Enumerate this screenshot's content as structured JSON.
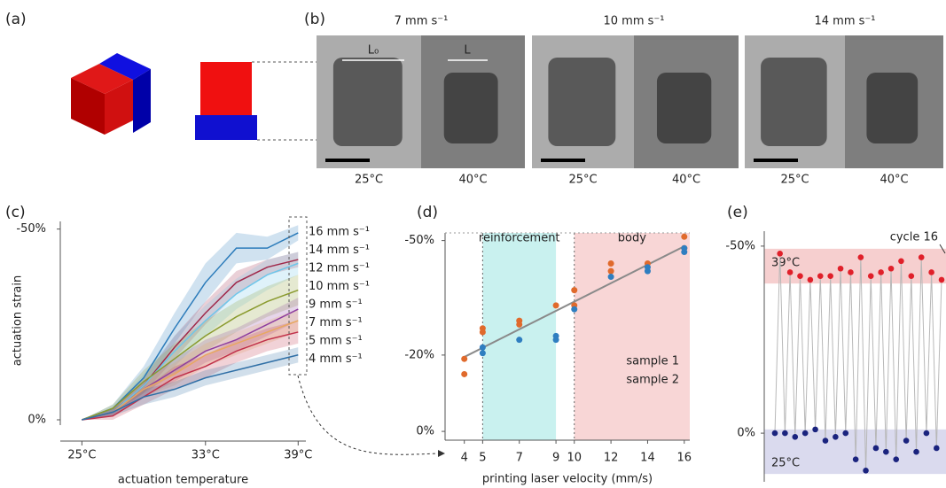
{
  "figure": {
    "panel_labels": [
      "(a)",
      "(b)",
      "(c)",
      "(d)",
      "(e)"
    ],
    "photos": {
      "speeds": [
        "7 mm s⁻¹",
        "10 mm s⁻¹",
        "14 mm s⁻¹"
      ],
      "temperatures": [
        "25°C",
        "40°C"
      ],
      "length_labels": [
        "L₀",
        "L"
      ]
    }
  },
  "chart_data": [
    {
      "type": "line",
      "xlabel": "actuation temperature",
      "ylabel": "actuation strain",
      "x": [
        25,
        27,
        29,
        31,
        33,
        35,
        37,
        39
      ],
      "xlim": [
        23.6,
        39.5
      ],
      "xticks": [
        {
          "value": 25,
          "label": "25°C"
        },
        {
          "value": 33,
          "label": "33°C"
        },
        {
          "value": 39,
          "label": "39°C"
        }
      ],
      "ylim": [
        0,
        -52
      ],
      "yticks": [
        {
          "value": -50,
          "label": "-50%"
        },
        {
          "value": 0,
          "label": "0%"
        }
      ],
      "series": [
        {
          "name": "16 mm s⁻¹",
          "color": "#2b7bba",
          "values": [
            0,
            -3,
            -11,
            -24,
            -36,
            -45,
            -45,
            -49
          ],
          "errors": [
            0,
            1,
            3,
            4,
            5,
            4,
            3,
            2
          ]
        },
        {
          "name": "14 mm s⁻¹",
          "color": "#a0284a",
          "values": [
            0,
            -2,
            -9,
            -19,
            -28,
            -36,
            -40,
            -42
          ],
          "errors": [
            0,
            1,
            2,
            3,
            3,
            3,
            2,
            2
          ]
        },
        {
          "name": "12 mm s⁻¹",
          "color": "#6ec6ea",
          "values": [
            0,
            -2,
            -9,
            -18,
            -26,
            -33,
            -38,
            -41
          ],
          "errors": [
            0,
            1,
            3,
            4,
            4,
            4,
            4,
            3
          ]
        },
        {
          "name": "10 mm s⁻¹",
          "color": "#8a9a2e",
          "values": [
            0,
            -3,
            -10,
            -16,
            -22,
            -27,
            -31,
            -34
          ],
          "errors": [
            0,
            1,
            3,
            4,
            4,
            4,
            4,
            4
          ]
        },
        {
          "name": "9 mm s⁻¹",
          "color": "#8e3ea0",
          "values": [
            0,
            -2,
            -8,
            -13,
            -18,
            -21,
            -25,
            -29
          ],
          "errors": [
            0,
            1,
            2,
            3,
            3,
            3,
            3,
            3
          ]
        },
        {
          "name": "7 mm s⁻¹",
          "color": "#e8a860",
          "values": [
            0,
            -2,
            -8,
            -12,
            -17,
            -20,
            -23,
            -26
          ],
          "errors": [
            0,
            1,
            2,
            3,
            3,
            3,
            3,
            3
          ]
        },
        {
          "name": "5 mm s⁻¹",
          "color": "#c0304a",
          "values": [
            0,
            -1,
            -6,
            -11,
            -14,
            -18,
            -21,
            -23
          ],
          "errors": [
            0,
            1,
            2,
            3,
            3,
            3,
            3,
            3
          ]
        },
        {
          "name": "4 mm s⁻¹",
          "color": "#2f6fa6",
          "values": [
            0,
            -2,
            -6,
            -8,
            -11,
            -13,
            -15,
            -17
          ],
          "errors": [
            0,
            1,
            2,
            2,
            2,
            2,
            2,
            2
          ]
        }
      ]
    },
    {
      "type": "scatter",
      "xlabel": "printing laser velocity (mm/s)",
      "xlim": [
        2.95,
        16.3
      ],
      "xticks": [
        4,
        5,
        7,
        9,
        10,
        12,
        14,
        16
      ],
      "ylim": [
        2.3,
        -52
      ],
      "yticks": [
        {
          "value": -50,
          "label": "-50%"
        },
        {
          "value": -20,
          "label": "-20%"
        },
        {
          "value": 0,
          "label": "0%"
        }
      ],
      "regions": [
        {
          "label": "reinforcement",
          "range": [
            5,
            9
          ],
          "color": "#c9f1ef",
          "label_color": "#3aa9a6"
        },
        {
          "label": "body",
          "range": [
            10,
            16.3
          ],
          "color": "#f8d6d6",
          "label_color": "#d0585a"
        }
      ],
      "fit": {
        "x": [
          4,
          16
        ],
        "values": [
          -19.5,
          -48.5
        ],
        "color": "#8a8a8a"
      },
      "series": [
        {
          "name": "sample 1",
          "color": "#e06a2c",
          "x": [
            4,
            4,
            5,
            5,
            7,
            7,
            9,
            10,
            10,
            12,
            12,
            14,
            16,
            16
          ],
          "values": [
            -19,
            -15,
            -27,
            -26,
            -29,
            -28,
            -33,
            -37,
            -33,
            -44,
            -42,
            -44,
            -51,
            -48
          ]
        },
        {
          "name": "sample 2",
          "color": "#2f7ec0",
          "x": [
            5,
            5,
            7,
            9,
            9,
            10,
            12,
            14,
            14,
            16,
            16
          ],
          "values": [
            -22,
            -20.5,
            -24,
            -25,
            -24,
            -32,
            -40.5,
            -42,
            -43,
            -47,
            -48
          ]
        }
      ]
    },
    {
      "type": "line",
      "ylim": [
        13,
        -54
      ],
      "yticks": [
        {
          "value": -50,
          "label": "-50%"
        },
        {
          "value": 0,
          "label": "0%"
        }
      ],
      "bands": [
        {
          "label": "39°C",
          "range": [
            -40,
            -49.3
          ],
          "color": "#f6cfcf",
          "label_color": "#d03a3a"
        },
        {
          "label": "25°C",
          "range": [
            -1,
            10.9
          ],
          "color": "#dadaee",
          "label_color": "#3a3a9a"
        }
      ],
      "annotation": "cycle 16",
      "line_color": "#b8b8b8",
      "low_color": "#1a237e",
      "high_color": "#e0202a",
      "values": [
        0,
        -48,
        0,
        -43,
        1,
        -42,
        0,
        -41,
        -1,
        -42,
        2,
        -42,
        1,
        -44,
        0,
        -43,
        7,
        -47,
        10,
        -42,
        4,
        -43,
        5,
        -44,
        7,
        -46,
        2,
        -42,
        5,
        -47,
        0,
        -43,
        4,
        -41
      ]
    }
  ]
}
